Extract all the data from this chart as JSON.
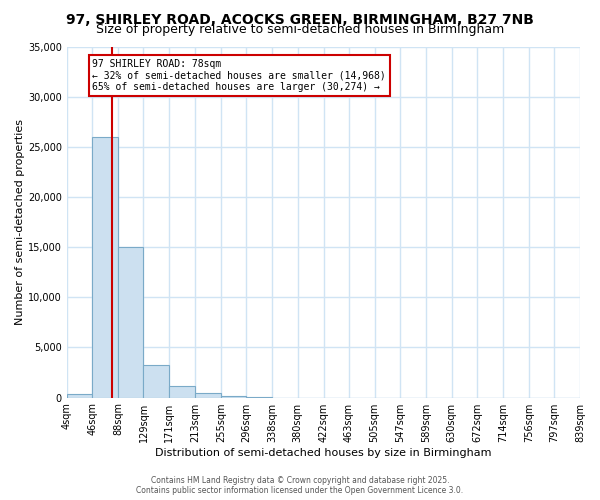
{
  "title": "97, SHIRLEY ROAD, ACOCKS GREEN, BIRMINGHAM, B27 7NB",
  "subtitle": "Size of property relative to semi-detached houses in Birmingham",
  "xlabel": "Distribution of semi-detached houses by size in Birmingham",
  "ylabel": "Number of semi-detached properties",
  "bin_edges": [
    4,
    46,
    88,
    129,
    171,
    213,
    255,
    296,
    338,
    380,
    422,
    463,
    505,
    547,
    589,
    630,
    672,
    714,
    756,
    797,
    839
  ],
  "bin_labels": [
    "4sqm",
    "46sqm",
    "88sqm",
    "129sqm",
    "171sqm",
    "213sqm",
    "255sqm",
    "296sqm",
    "338sqm",
    "380sqm",
    "422sqm",
    "463sqm",
    "505sqm",
    "547sqm",
    "589sqm",
    "630sqm",
    "672sqm",
    "714sqm",
    "756sqm",
    "797sqm",
    "839sqm"
  ],
  "bar_heights": [
    400,
    26000,
    15000,
    3200,
    1200,
    500,
    200,
    50,
    0,
    0,
    0,
    0,
    0,
    0,
    0,
    0,
    0,
    0,
    0,
    0
  ],
  "bar_color": "#cce0f0",
  "bar_edge_color": "#7aaac8",
  "property_size": 78,
  "property_line_color": "#cc0000",
  "ylim": [
    0,
    35000
  ],
  "yticks": [
    0,
    5000,
    10000,
    15000,
    20000,
    25000,
    30000,
    35000
  ],
  "annotation_text": "97 SHIRLEY ROAD: 78sqm\n← 32% of semi-detached houses are smaller (14,968)\n65% of semi-detached houses are larger (30,274) →",
  "annotation_box_color": "white",
  "annotation_border_color": "#cc0000",
  "footer_text": "Contains HM Land Registry data © Crown copyright and database right 2025.\nContains public sector information licensed under the Open Government Licence 3.0.",
  "background_color": "#ffffff",
  "grid_color": "#d0e4f4",
  "title_fontsize": 10,
  "subtitle_fontsize": 9,
  "ylabel_fontsize": 8,
  "xlabel_fontsize": 8,
  "tick_fontsize": 7
}
